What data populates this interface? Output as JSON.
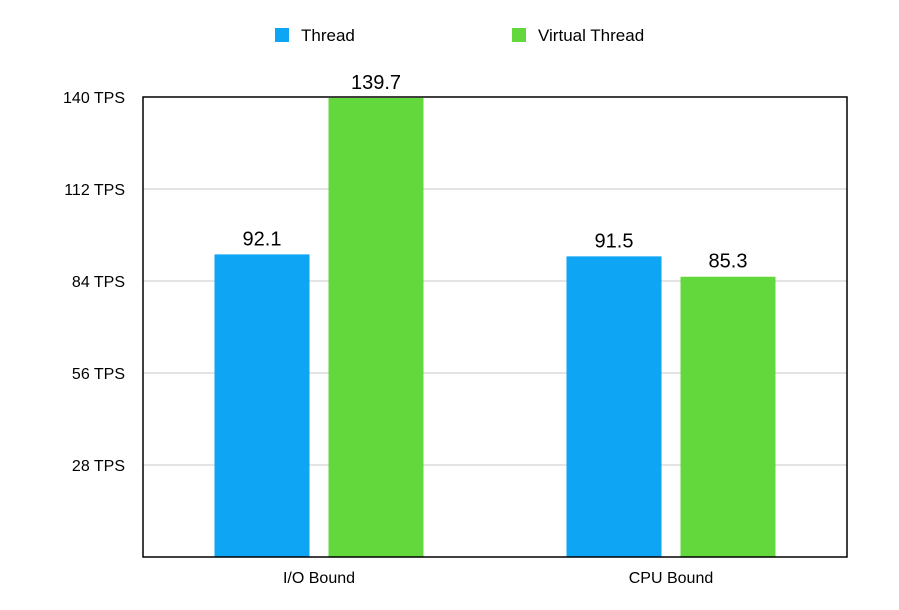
{
  "chart_data": {
    "type": "bar",
    "title": "",
    "xlabel": "",
    "ylabel": "",
    "categories": [
      "I/O Bound",
      "CPU Bound"
    ],
    "series": [
      {
        "name": "Thread",
        "color": "#0fa5f5",
        "values": [
          92.1,
          91.5
        ]
      },
      {
        "name": "Virtual Thread",
        "color": "#62d83c",
        "values": [
          139.7,
          85.3
        ]
      }
    ],
    "ylim": [
      0,
      140
    ],
    "y_ticks": [
      {
        "value": 28,
        "label": "28 TPS"
      },
      {
        "value": 56,
        "label": "56 TPS"
      },
      {
        "value": 84,
        "label": "84 TPS"
      },
      {
        "value": 112,
        "label": "112 TPS"
      },
      {
        "value": 140,
        "label": "140 TPS"
      }
    ],
    "data_labels": [
      [
        "92.1",
        "91.5"
      ],
      [
        "139.7",
        "85.3"
      ]
    ],
    "legend_position": "top-center",
    "grid": true
  }
}
